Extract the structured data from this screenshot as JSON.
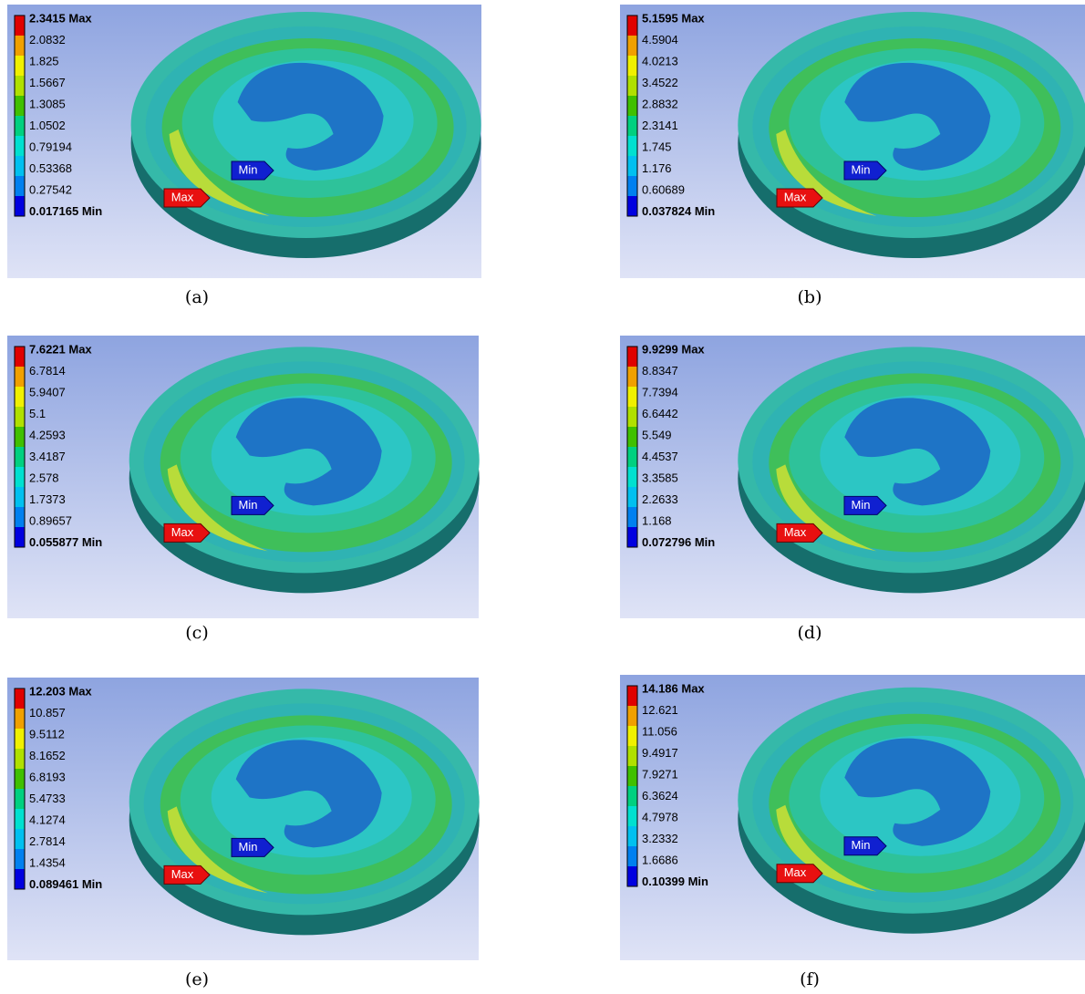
{
  "panels": [
    {
      "caption": "(a)",
      "legend": [
        "2.3415 Max",
        "2.0832",
        "1.825",
        "1.5667",
        "1.3085",
        "1.0502",
        "0.79194",
        "0.53368",
        "0.27542",
        "0.017165 Min"
      ],
      "max_tag": "Max",
      "min_tag": "Min"
    },
    {
      "caption": "(b)",
      "legend": [
        "5.1595 Max",
        "4.5904",
        "4.0213",
        "3.4522",
        "2.8832",
        "2.3141",
        "1.745",
        "1.176",
        "0.60689",
        "0.037824 Min"
      ],
      "max_tag": "Max",
      "min_tag": "Min"
    },
    {
      "caption": "(c)",
      "legend": [
        "7.6221 Max",
        "6.7814",
        "5.9407",
        "5.1",
        "4.2593",
        "3.4187",
        "2.578",
        "1.7373",
        "0.89657",
        "0.055877 Min"
      ],
      "max_tag": "Max",
      "min_tag": "Min"
    },
    {
      "caption": "(d)",
      "legend": [
        "9.9299 Max",
        "8.8347",
        "7.7394",
        "6.6442",
        "5.549",
        "4.4537",
        "3.3585",
        "2.2633",
        "1.168",
        "0.072796 Min"
      ],
      "max_tag": "Max",
      "min_tag": "Min"
    },
    {
      "caption": "(e)",
      "legend": [
        "12.203 Max",
        "10.857",
        "9.5112",
        "8.1652",
        "6.8193",
        "5.4733",
        "4.1274",
        "2.7814",
        "1.4354",
        "0.089461 Min"
      ],
      "max_tag": "Max",
      "min_tag": "Min"
    },
    {
      "caption": "(f)",
      "legend": [
        "14.186 Max",
        "12.621",
        "11.056",
        "9.4917",
        "7.9271",
        "6.3624",
        "4.7978",
        "3.2332",
        "1.6686",
        "0.10399 Min"
      ],
      "max_tag": "Max",
      "min_tag": "Min"
    }
  ]
}
